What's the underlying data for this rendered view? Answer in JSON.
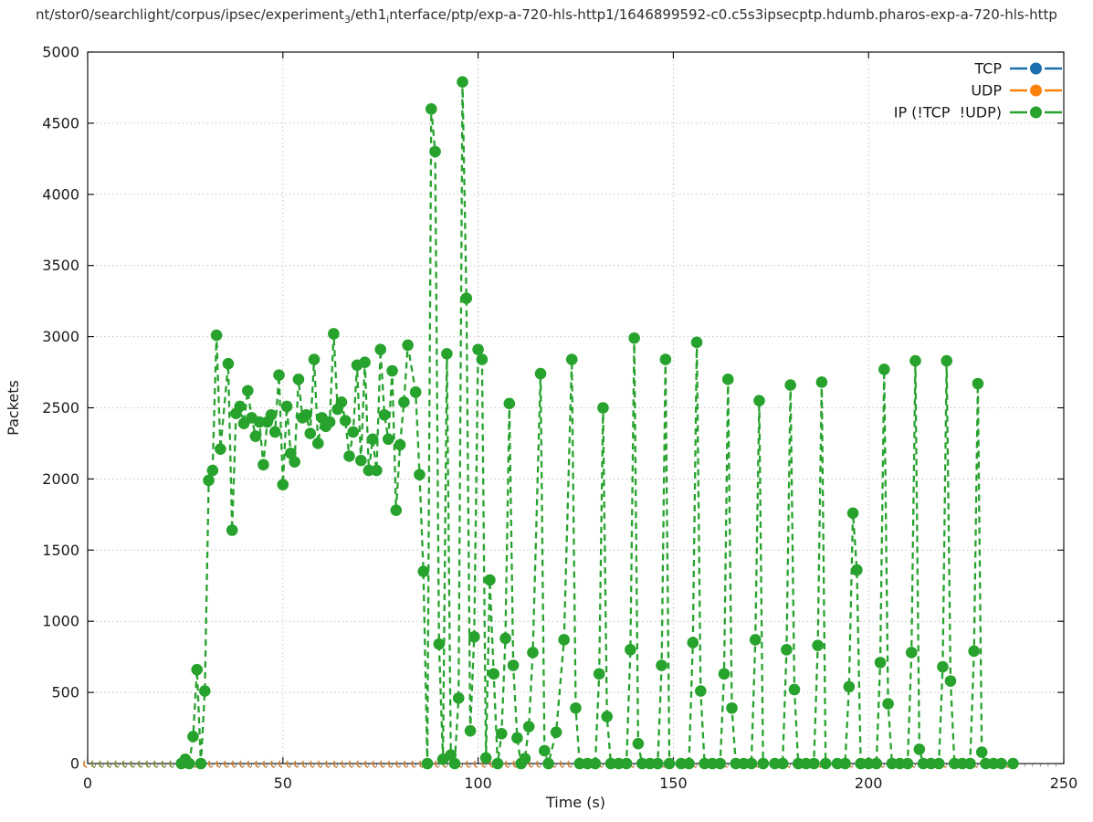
{
  "title": {
    "prefix": "nt/stor0/searchlight/corpus/ipsec/experiment",
    "sub1": "3",
    "mid": "/eth1",
    "sub2": "i",
    "suffix": "nterface/ptp/exp-a-720-hls-http1/1646899592-c0.c5s3ipsecptp.hdumb.pharos-exp-a-720-hls-http"
  },
  "axes": {
    "xlabel": "Time (s)",
    "ylabel": "Packets"
  },
  "legend": {
    "position": "top-right-inside"
  },
  "chart_data": {
    "type": "line",
    "title": "nt/stor0/searchlight/corpus/ipsec/experiment3/eth1interface/ptp/exp-a-720-hls-http1/1646899592-c0.c5s3ipsecptp.hdumb.pharos-exp-a-720-hls-http",
    "xlabel": "Time (s)",
    "ylabel": "Packets",
    "xlim": [
      0,
      250
    ],
    "ylim": [
      0,
      5000
    ],
    "xticks": [
      0,
      50,
      100,
      150,
      200,
      250
    ],
    "yticks": [
      0,
      500,
      1000,
      1500,
      2000,
      2500,
      3000,
      3500,
      4000,
      4500,
      5000
    ],
    "minor_xtick_step": 2,
    "grid": "dotted",
    "marker": "filled-circle",
    "line_style": "dashed",
    "series": [
      {
        "name": "TCP",
        "color": "#1b6faf",
        "constant": 0,
        "t_start": 0,
        "t_end": 236,
        "t_step": 2
      },
      {
        "name": "UDP",
        "color": "#fd810e",
        "constant": 0,
        "t_start": 0,
        "t_end": 236,
        "t_step": 2
      },
      {
        "name": "IP (!TCP  !UDP)",
        "color": "#27a22d",
        "faint_until": 25,
        "points": [
          [
            2,
            0
          ],
          [
            4,
            0
          ],
          [
            6,
            0
          ],
          [
            8,
            0
          ],
          [
            10,
            0
          ],
          [
            12,
            0
          ],
          [
            14,
            0
          ],
          [
            16,
            0
          ],
          [
            18,
            0
          ],
          [
            20,
            0
          ],
          [
            22,
            0
          ],
          [
            24,
            0
          ],
          [
            25,
            30
          ],
          [
            26,
            0
          ],
          [
            27,
            190
          ],
          [
            28,
            660
          ],
          [
            29,
            0
          ],
          [
            30,
            510
          ],
          [
            31,
            1990
          ],
          [
            32,
            2060
          ],
          [
            33,
            3010
          ],
          [
            34,
            2210
          ],
          [
            36,
            2810
          ],
          [
            37,
            1640
          ],
          [
            38,
            2460
          ],
          [
            39,
            2510
          ],
          [
            40,
            2390
          ],
          [
            41,
            2620
          ],
          [
            42,
            2430
          ],
          [
            43,
            2300
          ],
          [
            44,
            2400
          ],
          [
            45,
            2100
          ],
          [
            46,
            2400
          ],
          [
            47,
            2450
          ],
          [
            48,
            2330
          ],
          [
            49,
            2730
          ],
          [
            50,
            1960
          ],
          [
            51,
            2510
          ],
          [
            52,
            2180
          ],
          [
            53,
            2120
          ],
          [
            54,
            2700
          ],
          [
            55,
            2430
          ],
          [
            56,
            2450
          ],
          [
            57,
            2320
          ],
          [
            58,
            2840
          ],
          [
            59,
            2250
          ],
          [
            60,
            2430
          ],
          [
            61,
            2370
          ],
          [
            62,
            2400
          ],
          [
            63,
            3020
          ],
          [
            64,
            2490
          ],
          [
            65,
            2540
          ],
          [
            66,
            2410
          ],
          [
            67,
            2160
          ],
          [
            68,
            2330
          ],
          [
            69,
            2800
          ],
          [
            70,
            2130
          ],
          [
            71,
            2820
          ],
          [
            72,
            2060
          ],
          [
            73,
            2280
          ],
          [
            74,
            2060
          ],
          [
            75,
            2910
          ],
          [
            76,
            2450
          ],
          [
            77,
            2280
          ],
          [
            78,
            2760
          ],
          [
            79,
            1780
          ],
          [
            80,
            2240
          ],
          [
            81,
            2540
          ],
          [
            82,
            2940
          ],
          [
            84,
            2610
          ],
          [
            85,
            2030
          ],
          [
            86,
            1350
          ],
          [
            87,
            0
          ],
          [
            88,
            4600
          ],
          [
            89,
            4300
          ],
          [
            90,
            840
          ],
          [
            91,
            30
          ],
          [
            92,
            2880
          ],
          [
            93,
            60
          ],
          [
            94,
            0
          ],
          [
            95,
            460
          ],
          [
            96,
            4790
          ],
          [
            97,
            3270
          ],
          [
            98,
            230
          ],
          [
            99,
            890
          ],
          [
            100,
            2910
          ],
          [
            101,
            2840
          ],
          [
            102,
            40
          ],
          [
            103,
            1290
          ],
          [
            104,
            630
          ],
          [
            105,
            0
          ],
          [
            106,
            210
          ],
          [
            107,
            880
          ],
          [
            108,
            2530
          ],
          [
            109,
            690
          ],
          [
            110,
            180
          ],
          [
            111,
            0
          ],
          [
            112,
            35
          ],
          [
            113,
            260
          ],
          [
            114,
            780
          ],
          [
            116,
            2740
          ],
          [
            117,
            90
          ],
          [
            118,
            0
          ],
          [
            120,
            220
          ],
          [
            122,
            870
          ],
          [
            124,
            2840
          ],
          [
            125,
            390
          ],
          [
            126,
            0
          ],
          [
            128,
            0
          ],
          [
            130,
            0
          ],
          [
            131,
            630
          ],
          [
            132,
            2500
          ],
          [
            133,
            330
          ],
          [
            134,
            0
          ],
          [
            136,
            0
          ],
          [
            138,
            0
          ],
          [
            139,
            800
          ],
          [
            140,
            2990
          ],
          [
            141,
            140
          ],
          [
            142,
            0
          ],
          [
            144,
            0
          ],
          [
            146,
            0
          ],
          [
            147,
            690
          ],
          [
            148,
            2840
          ],
          [
            149,
            0
          ],
          [
            152,
            0
          ],
          [
            154,
            0
          ],
          [
            155,
            850
          ],
          [
            156,
            2960
          ],
          [
            157,
            510
          ],
          [
            158,
            0
          ],
          [
            160,
            0
          ],
          [
            162,
            0
          ],
          [
            163,
            630
          ],
          [
            164,
            2700
          ],
          [
            165,
            390
          ],
          [
            166,
            0
          ],
          [
            168,
            0
          ],
          [
            170,
            0
          ],
          [
            171,
            870
          ],
          [
            172,
            2550
          ],
          [
            173,
            0
          ],
          [
            176,
            0
          ],
          [
            178,
            0
          ],
          [
            179,
            800
          ],
          [
            180,
            2660
          ],
          [
            181,
            520
          ],
          [
            182,
            0
          ],
          [
            184,
            0
          ],
          [
            186,
            0
          ],
          [
            187,
            830
          ],
          [
            188,
            2680
          ],
          [
            189,
            0
          ],
          [
            192,
            0
          ],
          [
            194,
            0
          ],
          [
            195,
            540
          ],
          [
            196,
            1760
          ],
          [
            197,
            1360
          ],
          [
            198,
            0
          ],
          [
            200,
            0
          ],
          [
            202,
            0
          ],
          [
            203,
            710
          ],
          [
            204,
            2770
          ],
          [
            205,
            420
          ],
          [
            206,
            0
          ],
          [
            208,
            0
          ],
          [
            210,
            0
          ],
          [
            211,
            780
          ],
          [
            212,
            2830
          ],
          [
            213,
            100
          ],
          [
            214,
            0
          ],
          [
            216,
            0
          ],
          [
            218,
            0
          ],
          [
            219,
            680
          ],
          [
            220,
            2830
          ],
          [
            221,
            580
          ],
          [
            222,
            0
          ],
          [
            224,
            0
          ],
          [
            226,
            0
          ],
          [
            227,
            790
          ],
          [
            228,
            2670
          ],
          [
            229,
            80
          ],
          [
            230,
            0
          ],
          [
            232,
            0
          ],
          [
            234,
            0
          ],
          [
            237,
            0
          ]
        ]
      }
    ]
  }
}
